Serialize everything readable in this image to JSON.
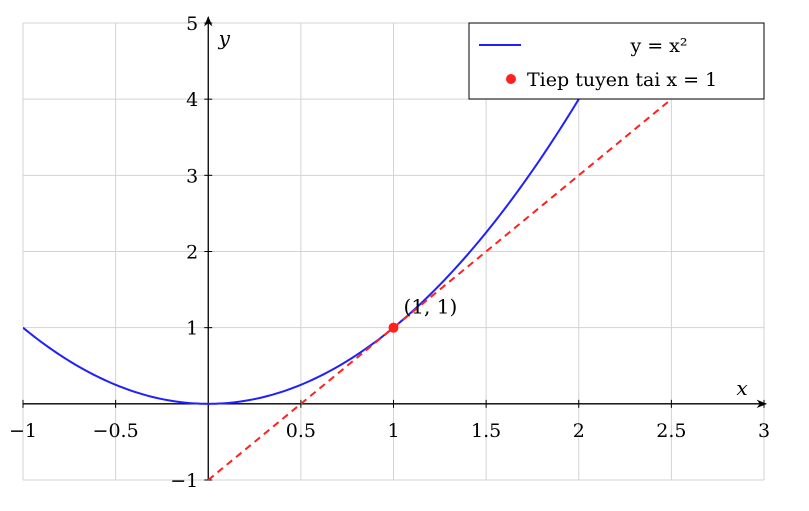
{
  "chart_data": {
    "type": "line",
    "title": "",
    "xlabel": "x",
    "ylabel": "y",
    "xlim": [
      -1,
      3
    ],
    "ylim": [
      -1,
      5
    ],
    "grid": true,
    "legend_position": "top-right",
    "x_ticks": [
      -1,
      -0.5,
      0.5,
      1,
      1.5,
      2,
      2.5,
      3
    ],
    "x_tick_labels": [
      "−1",
      "−0.5",
      "0.5",
      "1",
      "1.5",
      "2",
      "2.5",
      "3"
    ],
    "y_ticks": [
      -1,
      1,
      2,
      3,
      4,
      5
    ],
    "y_tick_labels": [
      "−1",
      "1",
      "2",
      "3",
      "4",
      "5"
    ],
    "series": [
      {
        "name": "y = x²",
        "kind": "function",
        "formula": "x^2",
        "domain": [
          -1,
          3
        ],
        "color": "#1f1fff",
        "style": "solid",
        "sample_points": [
          [
            -1,
            1
          ],
          [
            -0.5,
            0.25
          ],
          [
            0,
            0
          ],
          [
            0.5,
            0.25
          ],
          [
            1,
            1
          ],
          [
            1.5,
            2.25
          ],
          [
            2,
            4
          ]
        ]
      },
      {
        "name": "Tiep tuyen tai x = 1",
        "kind": "tangent-line",
        "formula": "2x - 1",
        "domain": [
          0,
          2.5
        ],
        "color": "#ff2020",
        "style": "dashed",
        "points": [
          [
            0,
            -1
          ],
          [
            2.5,
            4
          ]
        ]
      },
      {
        "name": "",
        "kind": "point",
        "color": "#ff2020",
        "points": [
          [
            1,
            1
          ]
        ]
      }
    ],
    "annotations": [
      {
        "text": "(1, 1)",
        "x": 1,
        "y": 1
      }
    ]
  }
}
